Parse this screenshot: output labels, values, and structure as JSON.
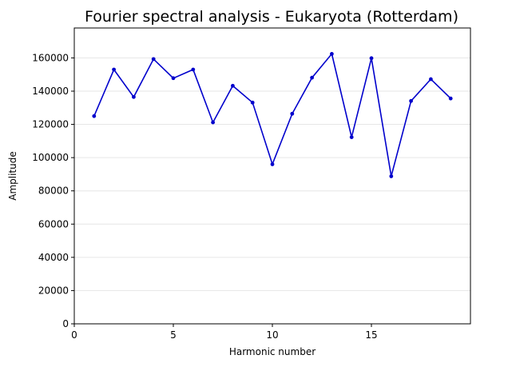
{
  "chart_data": {
    "type": "line",
    "title": "Fourier spectral analysis - Eukaryota (Rotterdam)",
    "xlabel": "Harmonic number",
    "ylabel": "Amplitude",
    "xlim": [
      0,
      20
    ],
    "ylim": [
      0,
      178000
    ],
    "x_ticks": [
      0,
      5,
      10,
      15
    ],
    "y_ticks": [
      0,
      20000,
      40000,
      60000,
      80000,
      100000,
      120000,
      140000,
      160000
    ],
    "grid": "horizontal",
    "series": [
      {
        "color": "#0000cc",
        "marker": "circle",
        "x": [
          1,
          2,
          3,
          4,
          5,
          6,
          7,
          8,
          9,
          10,
          11,
          12,
          13,
          14,
          15,
          16,
          17,
          18,
          19
        ],
        "y": [
          125000,
          153000,
          136500,
          159300,
          147800,
          153000,
          121200,
          143200,
          133100,
          96000,
          126400,
          148100,
          162400,
          112300,
          159800,
          88800,
          134100,
          147200,
          135600
        ]
      }
    ]
  }
}
